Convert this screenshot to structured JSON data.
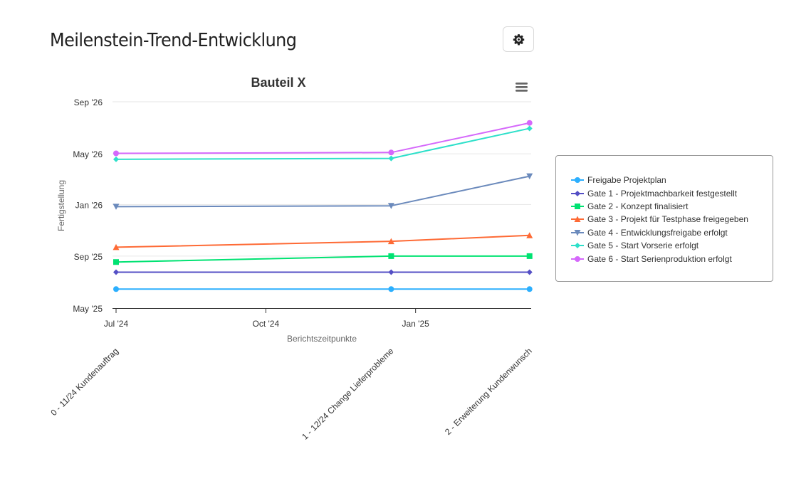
{
  "page": {
    "title": "Meilenstein-Trend-Entwicklung",
    "settings_icon": "gear-icon"
  },
  "chart_menu": {
    "icon": "hamburger-menu-icon"
  },
  "chart_data": {
    "type": "line",
    "title": "Bauteil X",
    "xlabel": "Berichtszeitpunkte",
    "ylabel": "Fertigstellung",
    "x_ticks": [
      "Jul '24",
      "Oct '24",
      "Jan '25"
    ],
    "x_range": [
      "2024-07-01",
      "2025-03-13"
    ],
    "y_ticks": [
      "May '25",
      "Sep '25",
      "Jan '26",
      "May '26",
      "Sep '26"
    ],
    "y_range": [
      "2025-05-01",
      "2026-09-01"
    ],
    "report_points": [
      {
        "date": "2024-07-01",
        "label": "0 - 11/24 Kundenauftrag"
      },
      {
        "date": "2024-12-17",
        "label": "1 - 12/24 Change Lieferprobleme"
      },
      {
        "date": "2025-03-12",
        "label": "2 - Erweiterung Kundenwunsch"
      }
    ],
    "grid": true,
    "legend_position": "right",
    "series": [
      {
        "name": "Freigabe Projektplan",
        "color": "#2caffe",
        "marker": "circle",
        "values": [
          "2025-06-15",
          "2025-06-15",
          "2025-06-15"
        ]
      },
      {
        "name": "Gate 1 - Projektmachbarkeit festgestellt",
        "color": "#544fc5",
        "marker": "diamond",
        "values": [
          "2025-07-25",
          "2025-07-25",
          "2025-07-25"
        ]
      },
      {
        "name": "Gate 2 - Konzept finalisiert",
        "color": "#00e272",
        "marker": "square",
        "values": [
          "2025-08-18",
          "2025-09-01",
          "2025-09-01"
        ]
      },
      {
        "name": "Gate 3 - Projekt für Testphase freigegeben",
        "color": "#fe6a35",
        "marker": "triangle",
        "values": [
          "2025-09-22",
          "2025-10-06",
          "2025-10-20"
        ]
      },
      {
        "name": "Gate 4 - Entwicklungsfreigabe erfolgt",
        "color": "#6b8abc",
        "marker": "triangle-down",
        "values": [
          "2025-12-27",
          "2025-12-29",
          "2026-03-09"
        ]
      },
      {
        "name": "Gate 5 - Start Vorserie erfolgt",
        "color": "#2ee0ca",
        "marker": "diamond",
        "values": [
          "2026-04-18",
          "2026-04-20",
          "2026-06-30"
        ]
      },
      {
        "name": "Gate 6 - Start Serienproduktion erfolgt",
        "color": "#d568fb",
        "marker": "circle",
        "values": [
          "2026-05-02",
          "2026-05-04",
          "2026-07-13"
        ]
      }
    ]
  }
}
